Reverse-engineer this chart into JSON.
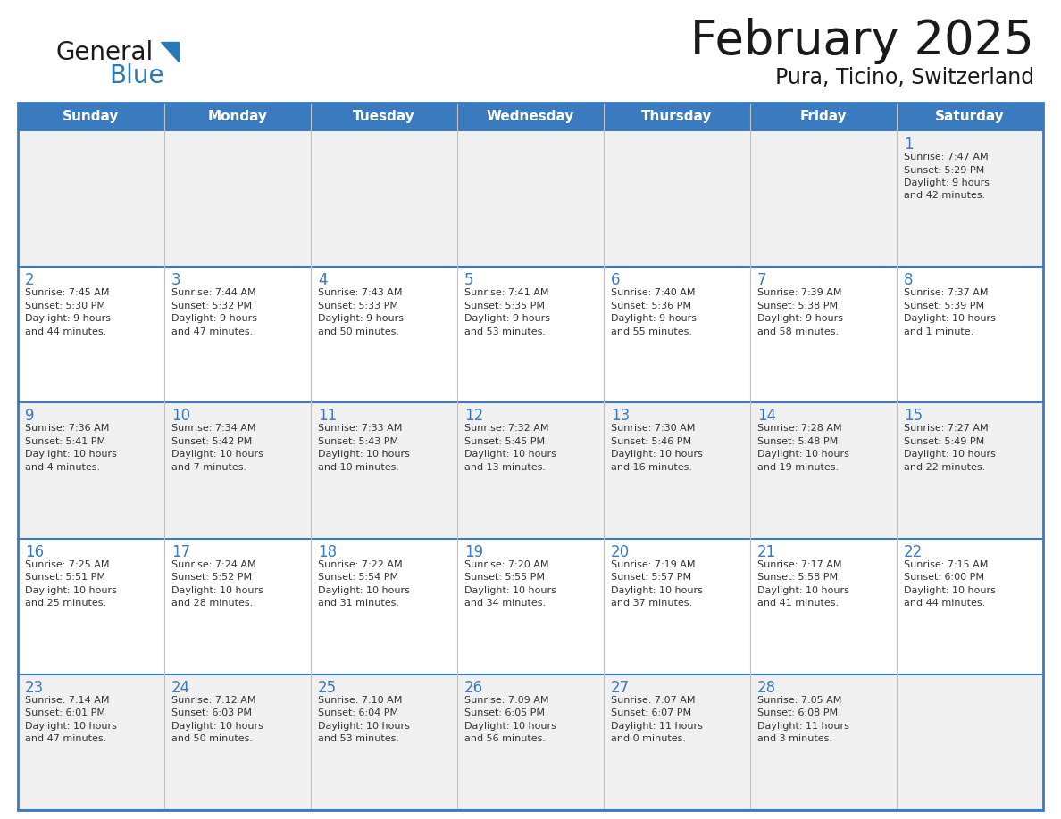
{
  "title": "February 2025",
  "subtitle": "Pura, Ticino, Switzerland",
  "days_of_week": [
    "Sunday",
    "Monday",
    "Tuesday",
    "Wednesday",
    "Thursday",
    "Friday",
    "Saturday"
  ],
  "header_bg": "#3a7abf",
  "header_text": "#ffffff",
  "cell_bg_light": "#f0f0f0",
  "cell_bg_white": "#ffffff",
  "border_color": "#3a7abf",
  "day_num_color": "#3a7abf",
  "text_color": "#333333",
  "title_color": "#1a1a1a",
  "calendar_data": [
    [
      null,
      null,
      null,
      null,
      null,
      null,
      {
        "day": 1,
        "sunrise": "7:47 AM",
        "sunset": "5:29 PM",
        "daylight": "9 hours and 42 minutes."
      }
    ],
    [
      {
        "day": 2,
        "sunrise": "7:45 AM",
        "sunset": "5:30 PM",
        "daylight": "9 hours and 44 minutes."
      },
      {
        "day": 3,
        "sunrise": "7:44 AM",
        "sunset": "5:32 PM",
        "daylight": "9 hours and 47 minutes."
      },
      {
        "day": 4,
        "sunrise": "7:43 AM",
        "sunset": "5:33 PM",
        "daylight": "9 hours and 50 minutes."
      },
      {
        "day": 5,
        "sunrise": "7:41 AM",
        "sunset": "5:35 PM",
        "daylight": "9 hours and 53 minutes."
      },
      {
        "day": 6,
        "sunrise": "7:40 AM",
        "sunset": "5:36 PM",
        "daylight": "9 hours and 55 minutes."
      },
      {
        "day": 7,
        "sunrise": "7:39 AM",
        "sunset": "5:38 PM",
        "daylight": "9 hours and 58 minutes."
      },
      {
        "day": 8,
        "sunrise": "7:37 AM",
        "sunset": "5:39 PM",
        "daylight": "10 hours and 1 minute."
      }
    ],
    [
      {
        "day": 9,
        "sunrise": "7:36 AM",
        "sunset": "5:41 PM",
        "daylight": "10 hours and 4 minutes."
      },
      {
        "day": 10,
        "sunrise": "7:34 AM",
        "sunset": "5:42 PM",
        "daylight": "10 hours and 7 minutes."
      },
      {
        "day": 11,
        "sunrise": "7:33 AM",
        "sunset": "5:43 PM",
        "daylight": "10 hours and 10 minutes."
      },
      {
        "day": 12,
        "sunrise": "7:32 AM",
        "sunset": "5:45 PM",
        "daylight": "10 hours and 13 minutes."
      },
      {
        "day": 13,
        "sunrise": "7:30 AM",
        "sunset": "5:46 PM",
        "daylight": "10 hours and 16 minutes."
      },
      {
        "day": 14,
        "sunrise": "7:28 AM",
        "sunset": "5:48 PM",
        "daylight": "10 hours and 19 minutes."
      },
      {
        "day": 15,
        "sunrise": "7:27 AM",
        "sunset": "5:49 PM",
        "daylight": "10 hours and 22 minutes."
      }
    ],
    [
      {
        "day": 16,
        "sunrise": "7:25 AM",
        "sunset": "5:51 PM",
        "daylight": "10 hours and 25 minutes."
      },
      {
        "day": 17,
        "sunrise": "7:24 AM",
        "sunset": "5:52 PM",
        "daylight": "10 hours and 28 minutes."
      },
      {
        "day": 18,
        "sunrise": "7:22 AM",
        "sunset": "5:54 PM",
        "daylight": "10 hours and 31 minutes."
      },
      {
        "day": 19,
        "sunrise": "7:20 AM",
        "sunset": "5:55 PM",
        "daylight": "10 hours and 34 minutes."
      },
      {
        "day": 20,
        "sunrise": "7:19 AM",
        "sunset": "5:57 PM",
        "daylight": "10 hours and 37 minutes."
      },
      {
        "day": 21,
        "sunrise": "7:17 AM",
        "sunset": "5:58 PM",
        "daylight": "10 hours and 41 minutes."
      },
      {
        "day": 22,
        "sunrise": "7:15 AM",
        "sunset": "6:00 PM",
        "daylight": "10 hours and 44 minutes."
      }
    ],
    [
      {
        "day": 23,
        "sunrise": "7:14 AM",
        "sunset": "6:01 PM",
        "daylight": "10 hours and 47 minutes."
      },
      {
        "day": 24,
        "sunrise": "7:12 AM",
        "sunset": "6:03 PM",
        "daylight": "10 hours and 50 minutes."
      },
      {
        "day": 25,
        "sunrise": "7:10 AM",
        "sunset": "6:04 PM",
        "daylight": "10 hours and 53 minutes."
      },
      {
        "day": 26,
        "sunrise": "7:09 AM",
        "sunset": "6:05 PM",
        "daylight": "10 hours and 56 minutes."
      },
      {
        "day": 27,
        "sunrise": "7:07 AM",
        "sunset": "6:07 PM",
        "daylight": "11 hours and 0 minutes."
      },
      {
        "day": 28,
        "sunrise": "7:05 AM",
        "sunset": "6:08 PM",
        "daylight": "11 hours and 3 minutes."
      },
      null
    ]
  ]
}
